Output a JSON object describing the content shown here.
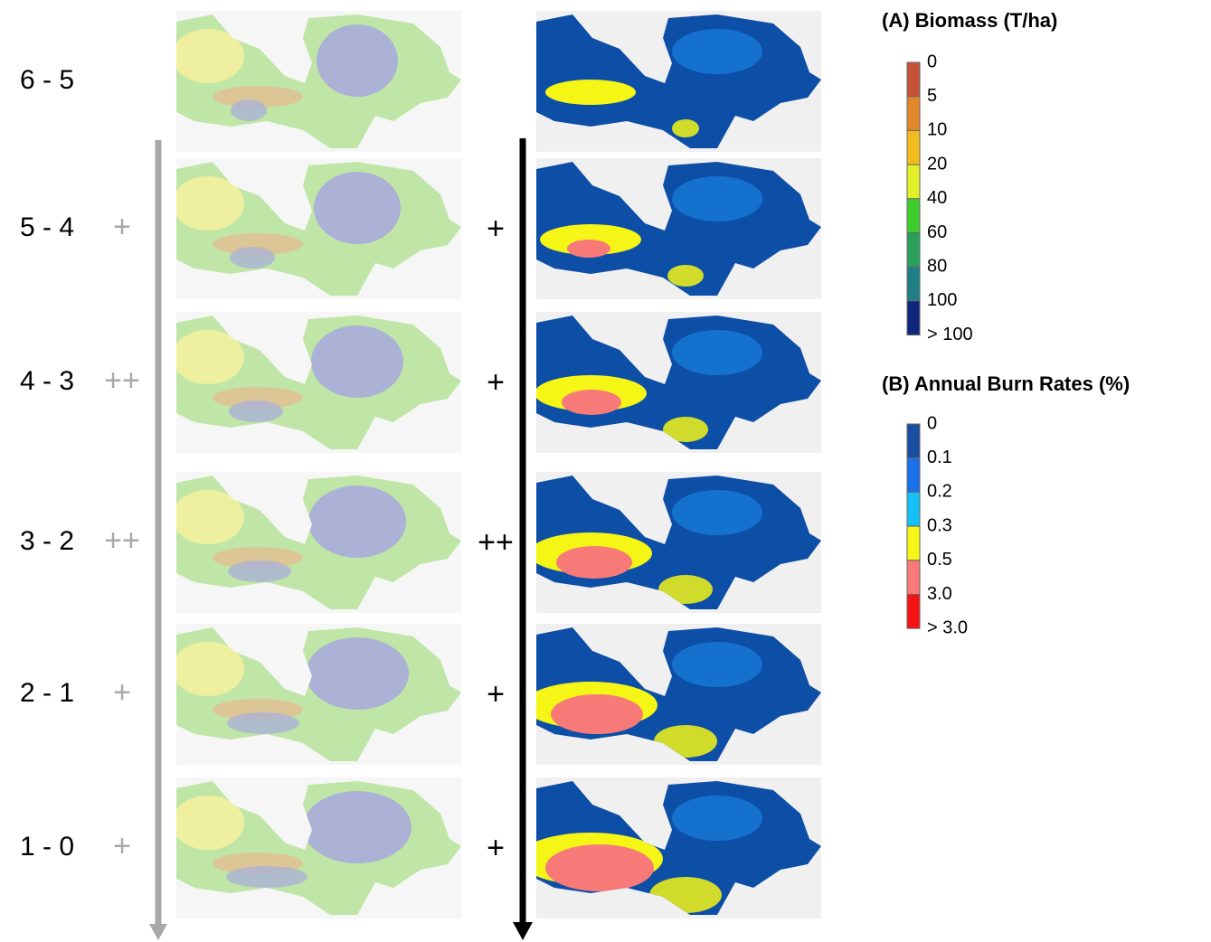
{
  "rows": [
    {
      "label": "6 - 5"
    },
    {
      "label": "5 - 4",
      "biomass_change": "+",
      "burn_change": "+"
    },
    {
      "label": "4 - 3",
      "biomass_change": "++",
      "burn_change": "+"
    },
    {
      "label": "3 - 2",
      "biomass_change": "++",
      "burn_change": "++"
    },
    {
      "label": "2 - 1",
      "biomass_change": "+",
      "burn_change": "+"
    },
    {
      "label": "1 - 0",
      "biomass_change": "+",
      "burn_change": "+"
    }
  ],
  "legend_a": {
    "title": "(A) Biomass (T/ha)",
    "labels": [
      "0",
      "5",
      "10",
      "20",
      "40",
      "60",
      "80",
      "100",
      "> 100"
    ],
    "colors": [
      "#c65339",
      "#e3882a",
      "#f2bd1c",
      "#e3ef28",
      "#3ccc2c",
      "#2aa05a",
      "#1f7f85",
      "#10267a"
    ]
  },
  "legend_b": {
    "title": "(B) Annual Burn Rates (%)",
    "labels": [
      "0",
      "0.1",
      "0.2",
      "0.3",
      "0.5",
      "3.0",
      "> 3.0"
    ],
    "colors": [
      "#1a4ea0",
      "#1a72e8",
      "#14c0f5",
      "#f5f516",
      "#f77a78",
      "#f51414"
    ]
  }
}
